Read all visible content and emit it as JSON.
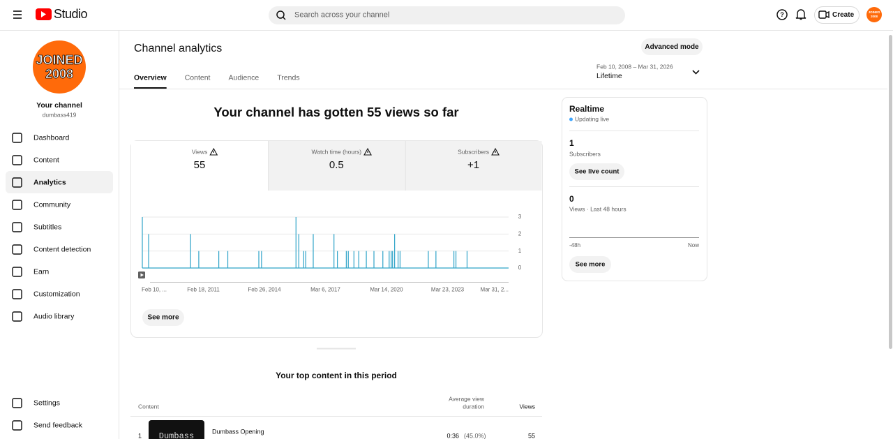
{
  "header": {
    "logo": "Studio",
    "search_placeholder": "Search across your channel",
    "create": "Create",
    "avatar": [
      "JOINED",
      "2008"
    ]
  },
  "sidebar": {
    "avatar": [
      "JOINED",
      "2008"
    ],
    "channel_label": "Your channel",
    "handle": "dumbass419",
    "nav": [
      "Dashboard",
      "Content",
      "Analytics",
      "Community",
      "Subtitles",
      "Content detection",
      "Earn",
      "Customization",
      "Audio library"
    ],
    "selected": "Analytics",
    "footer": [
      "Settings",
      "Send feedback"
    ]
  },
  "analytics": {
    "title": "Channel analytics",
    "advanced_mode": "Advanced mode",
    "tabs": [
      "Overview",
      "Content",
      "Audience",
      "Trends"
    ],
    "date_range": "Feb 10, 2008 – Mar 31, 2026",
    "period": "Lifetime",
    "headline": "Your channel has gotten 55 views so far",
    "metrics": [
      {
        "label": "Views",
        "value": "55"
      },
      {
        "label": "Watch time (hours)",
        "value": "0.5"
      },
      {
        "label": "Subscribers",
        "value": "+1"
      }
    ],
    "see_more": "See more"
  },
  "chart_data": {
    "type": "line",
    "color": "#2ea3c8",
    "x": [
      "2008-02-10",
      "2008-06-03",
      "2010-07-01",
      "2010-11-27",
      "2011-11-24",
      "2012-05-05",
      "2013-11-17",
      "2014-01-05",
      "2015-09-20",
      "2015-11-10",
      "2016-02-06",
      "2016-03-14",
      "2016-07-28",
      "2017-08-07",
      "2017-10-08",
      "2018-03-18",
      "2018-04-23",
      "2018-08-03",
      "2018-10-29",
      "2019-03-15",
      "2019-07-31",
      "2020-01-08",
      "2020-05-01",
      "2020-06-07",
      "2020-07-02",
      "2020-08-08",
      "2020-10-09",
      "2020-11-14",
      "2022-04-09",
      "2022-08-25",
      "2023-07-16",
      "2023-08-22",
      "2024-03-10"
    ],
    "values": [
      3,
      2,
      2,
      1,
      1,
      1,
      1,
      1,
      3,
      2,
      1,
      1,
      2,
      2,
      1,
      1,
      1,
      1,
      1,
      1,
      1,
      1,
      1,
      1,
      1,
      2,
      1,
      1,
      1,
      1,
      1,
      1,
      1
    ],
    "xlim": [
      "2008-02-10",
      "2026-03-31"
    ],
    "xticks": [
      {
        "value": "2008-02-10",
        "label": "Feb 10, ..."
      },
      {
        "value": "2011-02-18",
        "label": "Feb 18, 2011"
      },
      {
        "value": "2014-02-26",
        "label": "Feb 26, 2014"
      },
      {
        "value": "2017-03-06",
        "label": "Mar 6, 2017"
      },
      {
        "value": "2020-03-14",
        "label": "Mar 14, 2020"
      },
      {
        "value": "2023-03-23",
        "label": "Mar 23, 2023"
      },
      {
        "value": "2026-03-31",
        "label": "Mar 31, 2..."
      }
    ],
    "ylim": [
      0,
      3
    ],
    "yticks": [
      0,
      1,
      2,
      3
    ],
    "grid": true
  },
  "realtime": {
    "title": "Realtime",
    "status": "Updating live",
    "subscribers": "1",
    "subscribers_label": "Subscribers",
    "live_count": "See live count",
    "views": "0",
    "views_label": "Views · Last 48 hours",
    "start": "-48h",
    "end": "Now",
    "see_more": "See more"
  },
  "top_content": {
    "title": "Your top content in this period",
    "columns": {
      "content": "Content",
      "duration": [
        "Average view",
        "duration"
      ],
      "views": "Views"
    },
    "rows": [
      {
        "rank": "1",
        "thumbnail": "Dumbass",
        "title": "Dumbass Opening",
        "duration": "0:36",
        "percent": "(45.0%)",
        "views": "55"
      }
    ]
  }
}
